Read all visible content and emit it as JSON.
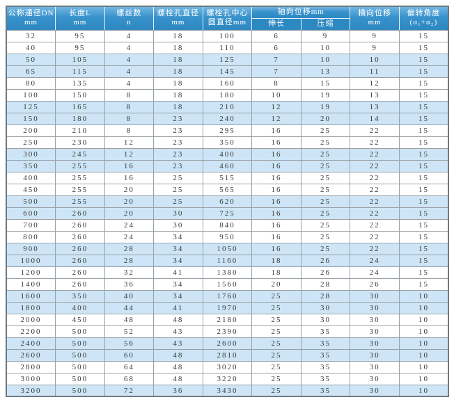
{
  "table": {
    "headers": [
      {
        "line1": "公称通径DN",
        "line2": "mm"
      },
      {
        "line1": "长度L",
        "line2": "mm"
      },
      {
        "line1": "螺丝数",
        "line2": "n"
      },
      {
        "line1": "螺栓孔直径",
        "line2": "mm"
      },
      {
        "line1": "螺栓孔中心",
        "line2": "圆直径mm"
      },
      {
        "group": "轴向位移mm",
        "sub": [
          "伸长",
          "压缩"
        ]
      },
      {
        "line1": "横向位移",
        "line2": "mm"
      },
      {
        "line1": "偏转角度",
        "line2": "(α₁+α₂)"
      }
    ],
    "rows": [
      [
        32,
        95,
        4,
        18,
        100,
        6,
        9,
        9,
        15
      ],
      [
        40,
        95,
        4,
        18,
        110,
        6,
        10,
        9,
        15
      ],
      [
        50,
        105,
        4,
        18,
        125,
        7,
        10,
        10,
        15
      ],
      [
        65,
        115,
        4,
        18,
        145,
        7,
        13,
        11,
        15
      ],
      [
        80,
        135,
        4,
        18,
        160,
        8,
        15,
        12,
        15
      ],
      [
        100,
        150,
        8,
        18,
        180,
        10,
        19,
        13,
        15
      ],
      [
        125,
        165,
        8,
        18,
        210,
        12,
        19,
        13,
        15
      ],
      [
        150,
        180,
        8,
        23,
        240,
        12,
        20,
        14,
        15
      ],
      [
        200,
        210,
        8,
        23,
        295,
        16,
        25,
        22,
        15
      ],
      [
        250,
        230,
        12,
        23,
        350,
        16,
        25,
        22,
        15
      ],
      [
        300,
        245,
        12,
        23,
        400,
        16,
        25,
        22,
        15
      ],
      [
        350,
        255,
        16,
        23,
        460,
        16,
        25,
        22,
        15
      ],
      [
        400,
        255,
        16,
        25,
        515,
        16,
        25,
        22,
        15
      ],
      [
        450,
        255,
        20,
        25,
        565,
        16,
        25,
        22,
        15
      ],
      [
        500,
        255,
        20,
        25,
        620,
        16,
        25,
        22,
        15
      ],
      [
        600,
        260,
        20,
        30,
        725,
        16,
        25,
        22,
        15
      ],
      [
        700,
        260,
        24,
        30,
        840,
        16,
        25,
        22,
        15
      ],
      [
        800,
        260,
        24,
        34,
        950,
        16,
        25,
        22,
        15
      ],
      [
        900,
        260,
        28,
        34,
        1050,
        16,
        25,
        22,
        15
      ],
      [
        1000,
        260,
        28,
        34,
        1160,
        18,
        26,
        24,
        15
      ],
      [
        1200,
        260,
        32,
        41,
        1380,
        18,
        26,
        24,
        15
      ],
      [
        1400,
        260,
        36,
        34,
        1560,
        20,
        28,
        26,
        15
      ],
      [
        1600,
        350,
        40,
        34,
        1760,
        25,
        28,
        30,
        10
      ],
      [
        1800,
        400,
        44,
        41,
        1970,
        25,
        30,
        30,
        10
      ],
      [
        2000,
        450,
        48,
        48,
        2180,
        25,
        30,
        30,
        10
      ],
      [
        2200,
        500,
        52,
        43,
        2390,
        25,
        35,
        30,
        10
      ],
      [
        2400,
        500,
        56,
        43,
        2600,
        25,
        35,
        30,
        10
      ],
      [
        2600,
        500,
        60,
        48,
        2810,
        25,
        35,
        30,
        10
      ],
      [
        2800,
        500,
        64,
        48,
        3020,
        25,
        35,
        30,
        10
      ],
      [
        3000,
        500,
        68,
        48,
        3220,
        25,
        35,
        30,
        10
      ],
      [
        3200,
        500,
        72,
        36,
        3430,
        25,
        35,
        30,
        10
      ]
    ]
  },
  "colors": {
    "header_bg": "#2c88c1",
    "header_bg_light": "#70b5e2",
    "header_text": "#ffffff",
    "row_alt_bg": "#cde5f6",
    "row_bg": "#ffffff",
    "cell_border": "#98a1a7",
    "outer_border": "#6d7880",
    "text": "#3a3a3a"
  }
}
